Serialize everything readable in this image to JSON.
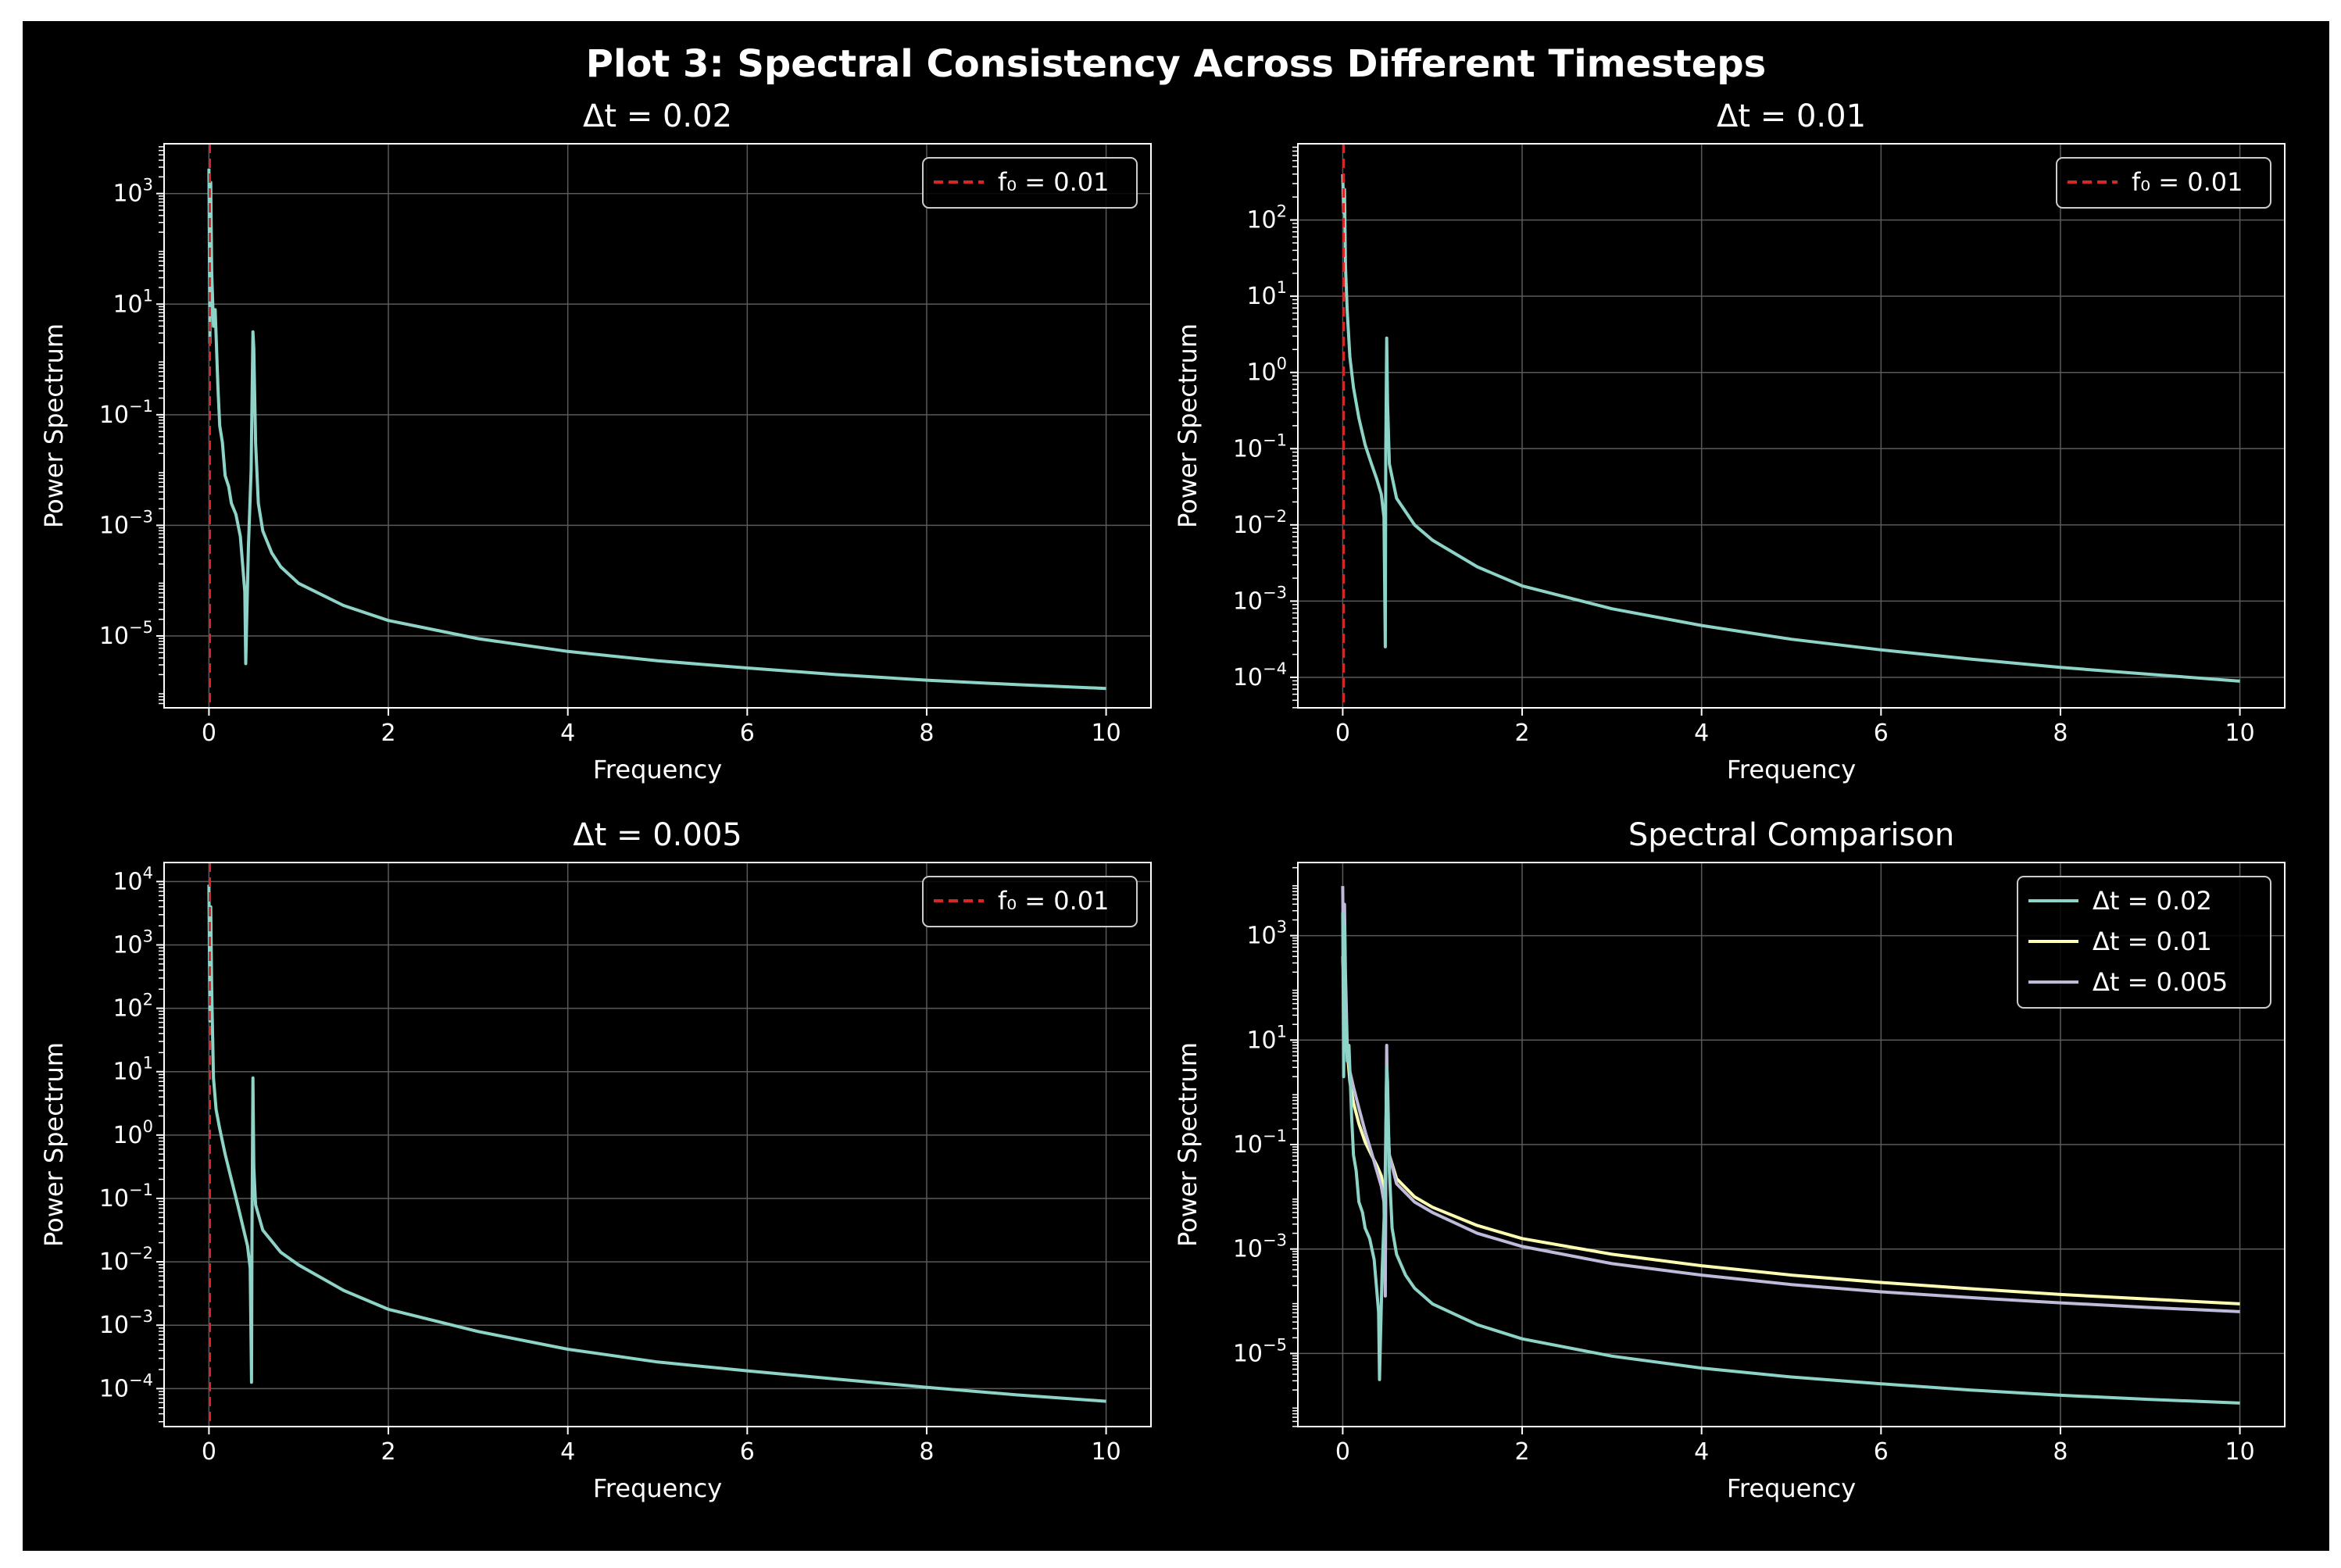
{
  "figure": {
    "title": "Plot 3: Spectral Consistency Across Different Timesteps"
  },
  "colors": {
    "background": "#000000",
    "grid": "#5a5a5a",
    "spine": "#ffffff",
    "series_dt_0_02": "#8dd3c7",
    "series_dt_0_01": "#ffffb3",
    "series_dt_0_005": "#bebada",
    "f0_line": "#d62728"
  },
  "chart_data": [
    {
      "type": "line",
      "title": "Δt = 0.02",
      "xlabel": "Frequency",
      "ylabel": "Power Spectrum",
      "yscale": "log",
      "xlim": [
        -0.5,
        10.5
      ],
      "ylim_exp": [
        -6.3,
        3.9
      ],
      "xticks": [
        0,
        2,
        4,
        6,
        8,
        10
      ],
      "yticks_exp": [
        3,
        1,
        -1,
        -3,
        -5
      ],
      "legend": [
        {
          "label": "f₀ = 0.01",
          "style": "dashed",
          "color": "#d62728"
        }
      ],
      "legend_loc": "upper right",
      "vline": {
        "x": 0.01,
        "label": "f₀ = 0.01"
      },
      "series": [
        {
          "name": "Δt = 0.02",
          "color": "#8dd3c7",
          "points": [
            [
              0.0,
              3.45
            ],
            [
              0.01,
              0.3
            ],
            [
              0.02,
              3.2
            ],
            [
              0.03,
              1.6
            ],
            [
              0.05,
              0.6
            ],
            [
              0.07,
              0.9
            ],
            [
              0.1,
              -0.5
            ],
            [
              0.12,
              -1.2
            ],
            [
              0.15,
              -1.5
            ],
            [
              0.18,
              -2.1
            ],
            [
              0.22,
              -2.3
            ],
            [
              0.25,
              -2.6
            ],
            [
              0.3,
              -2.8
            ],
            [
              0.35,
              -3.2
            ],
            [
              0.4,
              -4.2
            ],
            [
              0.41,
              -5.5
            ],
            [
              0.42,
              -4.8
            ],
            [
              0.44,
              -3.4
            ],
            [
              0.47,
              -2.0
            ],
            [
              0.49,
              0.5
            ],
            [
              0.5,
              0.2
            ],
            [
              0.52,
              -1.5
            ],
            [
              0.55,
              -2.6
            ],
            [
              0.6,
              -3.1
            ],
            [
              0.7,
              -3.5
            ],
            [
              0.8,
              -3.75
            ],
            [
              1.0,
              -4.05
            ],
            [
              1.5,
              -4.45
            ],
            [
              2.0,
              -4.72
            ],
            [
              3.0,
              -5.05
            ],
            [
              4.0,
              -5.28
            ],
            [
              5.0,
              -5.45
            ],
            [
              6.0,
              -5.58
            ],
            [
              7.0,
              -5.7
            ],
            [
              8.0,
              -5.8
            ],
            [
              9.0,
              -5.88
            ],
            [
              10.0,
              -5.95
            ]
          ]
        }
      ]
    },
    {
      "type": "line",
      "title": "Δt = 0.01",
      "xlabel": "Frequency",
      "ylabel": "Power Spectrum",
      "yscale": "log",
      "xlim": [
        -0.5,
        10.5
      ],
      "ylim_exp": [
        -4.4,
        3.0
      ],
      "xticks": [
        0,
        2,
        4,
        6,
        8,
        10
      ],
      "yticks_exp": [
        2,
        1,
        0,
        -1,
        -2,
        -3,
        -4
      ],
      "legend": [
        {
          "label": "f₀ = 0.01",
          "style": "dashed",
          "color": "#d62728"
        }
      ],
      "legend_loc": "upper right",
      "vline": {
        "x": 0.01,
        "label": "f₀ = 0.01"
      },
      "series": [
        {
          "name": "Δt = 0.01",
          "color": "#8dd3c7",
          "points": [
            [
              0.0,
              2.6
            ],
            [
              0.01,
              2.1
            ],
            [
              0.02,
              2.4
            ],
            [
              0.03,
              1.4
            ],
            [
              0.05,
              0.8
            ],
            [
              0.08,
              0.2
            ],
            [
              0.12,
              -0.2
            ],
            [
              0.18,
              -0.6
            ],
            [
              0.25,
              -0.95
            ],
            [
              0.32,
              -1.2
            ],
            [
              0.38,
              -1.4
            ],
            [
              0.43,
              -1.6
            ],
            [
              0.46,
              -1.9
            ],
            [
              0.475,
              -3.6
            ],
            [
              0.48,
              -1.0
            ],
            [
              0.49,
              0.45
            ],
            [
              0.5,
              -0.4
            ],
            [
              0.52,
              -1.2
            ],
            [
              0.6,
              -1.65
            ],
            [
              0.8,
              -2.0
            ],
            [
              1.0,
              -2.2
            ],
            [
              1.5,
              -2.55
            ],
            [
              2.0,
              -2.8
            ],
            [
              3.0,
              -3.1
            ],
            [
              4.0,
              -3.32
            ],
            [
              5.0,
              -3.5
            ],
            [
              6.0,
              -3.64
            ],
            [
              7.0,
              -3.76
            ],
            [
              8.0,
              -3.87
            ],
            [
              9.0,
              -3.96
            ],
            [
              10.0,
              -4.05
            ]
          ]
        }
      ]
    },
    {
      "type": "line",
      "title": "Δt = 0.005",
      "xlabel": "Frequency",
      "ylabel": "Power Spectrum",
      "yscale": "log",
      "xlim": [
        -0.5,
        10.5
      ],
      "ylim_exp": [
        -4.6,
        4.3
      ],
      "xticks": [
        0,
        2,
        4,
        6,
        8,
        10
      ],
      "yticks_exp": [
        4,
        3,
        2,
        1,
        0,
        -1,
        -2,
        -3,
        -4
      ],
      "legend": [
        {
          "label": "f₀ = 0.01",
          "style": "dashed",
          "color": "#d62728"
        }
      ],
      "legend_loc": "upper right",
      "vline": {
        "x": 0.01,
        "label": "f₀ = 0.01"
      },
      "series": [
        {
          "name": "Δt = 0.005",
          "color": "#8dd3c7",
          "points": [
            [
              0.0,
              3.95
            ],
            [
              0.01,
              1.8
            ],
            [
              0.02,
              3.6
            ],
            [
              0.03,
              2.3
            ],
            [
              0.05,
              0.9
            ],
            [
              0.08,
              0.4
            ],
            [
              0.12,
              0.1
            ],
            [
              0.18,
              -0.3
            ],
            [
              0.25,
              -0.7
            ],
            [
              0.32,
              -1.1
            ],
            [
              0.38,
              -1.45
            ],
            [
              0.43,
              -1.75
            ],
            [
              0.46,
              -2.1
            ],
            [
              0.475,
              -3.9
            ],
            [
              0.48,
              -1.5
            ],
            [
              0.49,
              0.9
            ],
            [
              0.5,
              -0.5
            ],
            [
              0.52,
              -1.1
            ],
            [
              0.6,
              -1.5
            ],
            [
              0.8,
              -1.85
            ],
            [
              1.0,
              -2.05
            ],
            [
              1.5,
              -2.45
            ],
            [
              2.0,
              -2.75
            ],
            [
              3.0,
              -3.1
            ],
            [
              4.0,
              -3.38
            ],
            [
              5.0,
              -3.58
            ],
            [
              6.0,
              -3.72
            ],
            [
              7.0,
              -3.85
            ],
            [
              8.0,
              -3.98
            ],
            [
              9.0,
              -4.1
            ],
            [
              10.0,
              -4.2
            ]
          ]
        }
      ]
    },
    {
      "type": "line",
      "title": "Spectral Comparison",
      "xlabel": "Frequency",
      "ylabel": "Power Spectrum",
      "yscale": "log",
      "xlim": [
        -0.5,
        10.5
      ],
      "ylim_exp": [
        -6.4,
        4.4
      ],
      "xticks": [
        0,
        2,
        4,
        6,
        8,
        10
      ],
      "yticks_exp": [
        3,
        1,
        -1,
        -3,
        -5
      ],
      "legend": [
        {
          "label": "Δt = 0.02",
          "style": "solid",
          "color": "#8dd3c7"
        },
        {
          "label": "Δt = 0.01",
          "style": "solid",
          "color": "#ffffb3"
        },
        {
          "label": "Δt = 0.005",
          "style": "solid",
          "color": "#bebada"
        }
      ],
      "legend_loc": "upper right",
      "series": [
        {
          "name": "Δt = 0.01",
          "color": "#ffffb3",
          "points": [
            [
              0.0,
              2.6
            ],
            [
              0.01,
              2.1
            ],
            [
              0.02,
              2.4
            ],
            [
              0.03,
              1.4
            ],
            [
              0.05,
              0.8
            ],
            [
              0.08,
              0.2
            ],
            [
              0.12,
              -0.2
            ],
            [
              0.18,
              -0.6
            ],
            [
              0.25,
              -0.95
            ],
            [
              0.32,
              -1.2
            ],
            [
              0.38,
              -1.4
            ],
            [
              0.43,
              -1.6
            ],
            [
              0.46,
              -1.9
            ],
            [
              0.475,
              -3.6
            ],
            [
              0.48,
              -1.0
            ],
            [
              0.49,
              0.45
            ],
            [
              0.5,
              -0.4
            ],
            [
              0.52,
              -1.2
            ],
            [
              0.6,
              -1.65
            ],
            [
              0.8,
              -2.0
            ],
            [
              1.0,
              -2.2
            ],
            [
              1.5,
              -2.55
            ],
            [
              2.0,
              -2.8
            ],
            [
              3.0,
              -3.1
            ],
            [
              4.0,
              -3.32
            ],
            [
              5.0,
              -3.5
            ],
            [
              6.0,
              -3.64
            ],
            [
              7.0,
              -3.76
            ],
            [
              8.0,
              -3.87
            ],
            [
              9.0,
              -3.96
            ],
            [
              10.0,
              -4.05
            ]
          ]
        },
        {
          "name": "Δt = 0.005",
          "color": "#bebada",
          "points": [
            [
              0.0,
              3.95
            ],
            [
              0.01,
              1.8
            ],
            [
              0.02,
              3.6
            ],
            [
              0.03,
              2.3
            ],
            [
              0.05,
              0.9
            ],
            [
              0.08,
              0.4
            ],
            [
              0.12,
              0.1
            ],
            [
              0.18,
              -0.3
            ],
            [
              0.25,
              -0.75
            ],
            [
              0.32,
              -1.15
            ],
            [
              0.38,
              -1.5
            ],
            [
              0.43,
              -1.8
            ],
            [
              0.46,
              -2.1
            ],
            [
              0.475,
              -3.9
            ],
            [
              0.48,
              -1.5
            ],
            [
              0.49,
              0.9
            ],
            [
              0.5,
              -0.5
            ],
            [
              0.52,
              -1.2
            ],
            [
              0.6,
              -1.75
            ],
            [
              0.8,
              -2.1
            ],
            [
              1.0,
              -2.3
            ],
            [
              1.5,
              -2.7
            ],
            [
              2.0,
              -2.95
            ],
            [
              3.0,
              -3.28
            ],
            [
              4.0,
              -3.5
            ],
            [
              5.0,
              -3.68
            ],
            [
              6.0,
              -3.82
            ],
            [
              7.0,
              -3.93
            ],
            [
              8.0,
              -4.03
            ],
            [
              9.0,
              -4.12
            ],
            [
              10.0,
              -4.2
            ]
          ]
        },
        {
          "name": "Δt = 0.02",
          "color": "#8dd3c7",
          "points": [
            [
              0.0,
              3.45
            ],
            [
              0.01,
              0.3
            ],
            [
              0.02,
              3.2
            ],
            [
              0.03,
              1.6
            ],
            [
              0.05,
              0.6
            ],
            [
              0.07,
              0.9
            ],
            [
              0.1,
              -0.5
            ],
            [
              0.12,
              -1.2
            ],
            [
              0.15,
              -1.5
            ],
            [
              0.18,
              -2.1
            ],
            [
              0.22,
              -2.3
            ],
            [
              0.25,
              -2.6
            ],
            [
              0.3,
              -2.8
            ],
            [
              0.35,
              -3.2
            ],
            [
              0.4,
              -4.2
            ],
            [
              0.41,
              -5.5
            ],
            [
              0.42,
              -4.8
            ],
            [
              0.44,
              -3.4
            ],
            [
              0.47,
              -2.0
            ],
            [
              0.49,
              0.5
            ],
            [
              0.5,
              0.2
            ],
            [
              0.52,
              -1.5
            ],
            [
              0.55,
              -2.6
            ],
            [
              0.6,
              -3.1
            ],
            [
              0.7,
              -3.5
            ],
            [
              0.8,
              -3.75
            ],
            [
              1.0,
              -4.05
            ],
            [
              1.5,
              -4.45
            ],
            [
              2.0,
              -4.72
            ],
            [
              3.0,
              -5.05
            ],
            [
              4.0,
              -5.28
            ],
            [
              5.0,
              -5.45
            ],
            [
              6.0,
              -5.58
            ],
            [
              7.0,
              -5.7
            ],
            [
              8.0,
              -5.8
            ],
            [
              9.0,
              -5.88
            ],
            [
              10.0,
              -5.95
            ]
          ]
        }
      ]
    }
  ]
}
